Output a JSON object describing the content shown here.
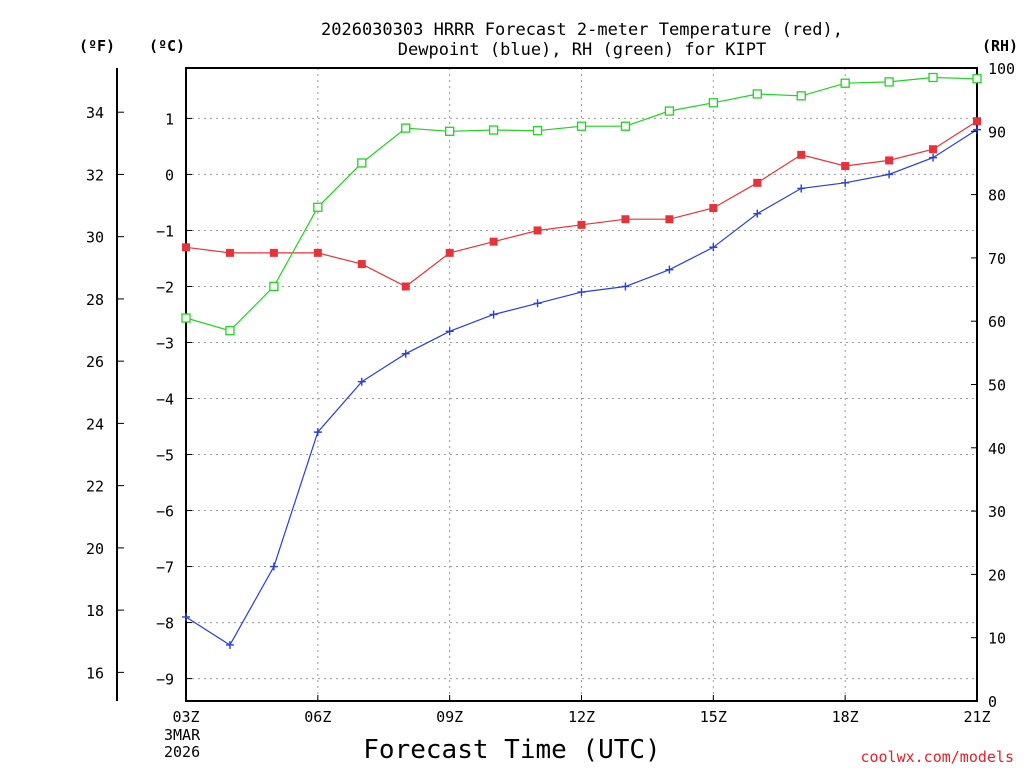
{
  "chart_data": {
    "type": "line",
    "title_line1": "2026030303 HRRR Forecast 2-meter Temperature (red),",
    "title_line2": "Dewpoint (blue), RH (green) for KIPT",
    "xlabel": "Forecast Time (UTC)",
    "x_tick_labels": [
      "03Z",
      "06Z",
      "09Z",
      "12Z",
      "15Z",
      "18Z",
      "21Z"
    ],
    "x_tick_hours": [
      3,
      6,
      9,
      12,
      15,
      18,
      21
    ],
    "x_date_line1": "3MAR",
    "x_date_line2": "2026",
    "credit": "coolwx.com/models",
    "unit_f": "(ºF)",
    "unit_c": "(ºC)",
    "unit_rh": "(RH)",
    "xlim": [
      3,
      21
    ],
    "celsius_axis": {
      "ylim": [
        -9.4,
        1.9
      ],
      "ticks": [
        -9,
        -8,
        -7,
        -6,
        -5,
        -4,
        -3,
        -2,
        -1,
        0,
        1
      ]
    },
    "fahrenheit_axis": {
      "ticks": [
        16,
        18,
        20,
        22,
        24,
        26,
        28,
        30,
        32,
        34
      ]
    },
    "rh_axis": {
      "ylim": [
        0,
        100
      ],
      "ticks": [
        0,
        10,
        20,
        30,
        40,
        50,
        60,
        70,
        80,
        90,
        100
      ]
    },
    "x": [
      3,
      4,
      5,
      6,
      7,
      8,
      9,
      10,
      11,
      12,
      13,
      14,
      15,
      16,
      17,
      18,
      19,
      20,
      21
    ],
    "series": [
      {
        "name": "Temperature",
        "color": "#e8323a",
        "marker": "filled-square",
        "axis": "celsius",
        "values": [
          -1.3,
          -1.4,
          -1.4,
          -1.4,
          -1.6,
          -2.0,
          -1.4,
          -1.2,
          -1.0,
          -0.9,
          -0.8,
          -0.8,
          -0.6,
          -0.15,
          0.35,
          0.15,
          0.25,
          0.45,
          0.95
        ]
      },
      {
        "name": "Dewpoint",
        "color": "#2a3ed8",
        "marker": "plus",
        "axis": "celsius",
        "values": [
          -7.9,
          -8.4,
          -7.0,
          -4.6,
          -3.7,
          -3.2,
          -2.8,
          -2.5,
          -2.3,
          -2.1,
          -2.0,
          -1.7,
          -1.3,
          -0.7,
          -0.25,
          -0.15,
          0.0,
          0.3,
          0.8
        ]
      },
      {
        "name": "RH",
        "color": "#22d322",
        "marker": "open-square",
        "axis": "rh",
        "values": [
          60.5,
          58.5,
          65.5,
          78.0,
          85.0,
          90.5,
          90.0,
          90.2,
          90.1,
          90.8,
          90.8,
          93.2,
          94.5,
          95.9,
          95.6,
          97.6,
          97.8,
          98.5,
          98.3
        ]
      }
    ]
  }
}
